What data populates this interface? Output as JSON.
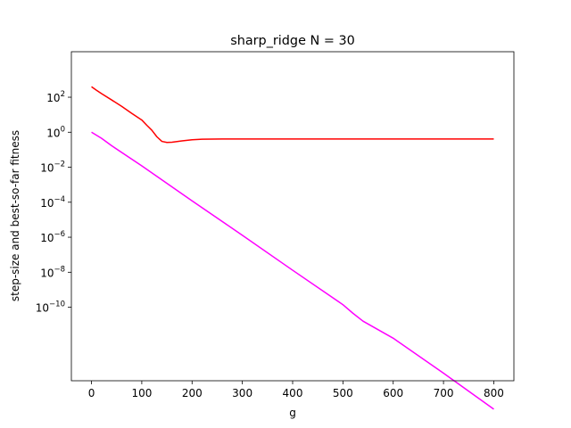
{
  "chart_data": {
    "type": "line",
    "title": "sharp_ridge N = 30",
    "xlabel": "g",
    "ylabel": "step-size and best-so-far fitness",
    "xlim": [
      -40,
      840
    ],
    "ylim_log10": [
      -14.2,
      4.6
    ],
    "y_scale": "log",
    "grid": false,
    "x_ticks": [
      {
        "value": 0,
        "label": "0"
      },
      {
        "value": 100,
        "label": "100"
      },
      {
        "value": 200,
        "label": "200"
      },
      {
        "value": 300,
        "label": "300"
      },
      {
        "value": 400,
        "label": "400"
      },
      {
        "value": 500,
        "label": "500"
      },
      {
        "value": 600,
        "label": "600"
      },
      {
        "value": 700,
        "label": "700"
      },
      {
        "value": 800,
        "label": "800"
      }
    ],
    "y_ticks": [
      {
        "exp": 2,
        "base": "10",
        "sup": "2"
      },
      {
        "exp": 0,
        "base": "10",
        "sup": "0"
      },
      {
        "exp": -2,
        "base": "10",
        "sup": "−2"
      },
      {
        "exp": -4,
        "base": "10",
        "sup": "−4"
      },
      {
        "exp": -6,
        "base": "10",
        "sup": "−6"
      },
      {
        "exp": -8,
        "base": "10",
        "sup": "−8"
      },
      {
        "exp": -10,
        "base": "10",
        "sup": "−10"
      }
    ],
    "series": [
      {
        "color": "#ff0000",
        "x": [
          0,
          10,
          20,
          40,
          60,
          80,
          100,
          110,
          120,
          130,
          140,
          150,
          160,
          180,
          200,
          220,
          260,
          300,
          400,
          500,
          600,
          700,
          800
        ],
        "y": [
          400,
          250,
          160,
          70,
          30,
          12,
          5,
          2.5,
          1.3,
          0.55,
          0.3,
          0.26,
          0.27,
          0.32,
          0.37,
          0.4,
          0.41,
          0.41,
          0.41,
          0.41,
          0.41,
          0.41,
          0.41
        ]
      },
      {
        "color": "#ff00ff",
        "x": [
          0,
          20,
          40,
          100,
          200,
          300,
          400,
          500,
          520,
          540,
          600,
          700,
          800
        ],
        "y": [
          1,
          0.45,
          0.17,
          0.012,
          0.00012,
          1.3e-06,
          1.3e-08,
          1.4e-10,
          4.5e-11,
          1.6e-11,
          1.7e-12,
          1.7e-14,
          1.5e-16
        ]
      }
    ]
  }
}
